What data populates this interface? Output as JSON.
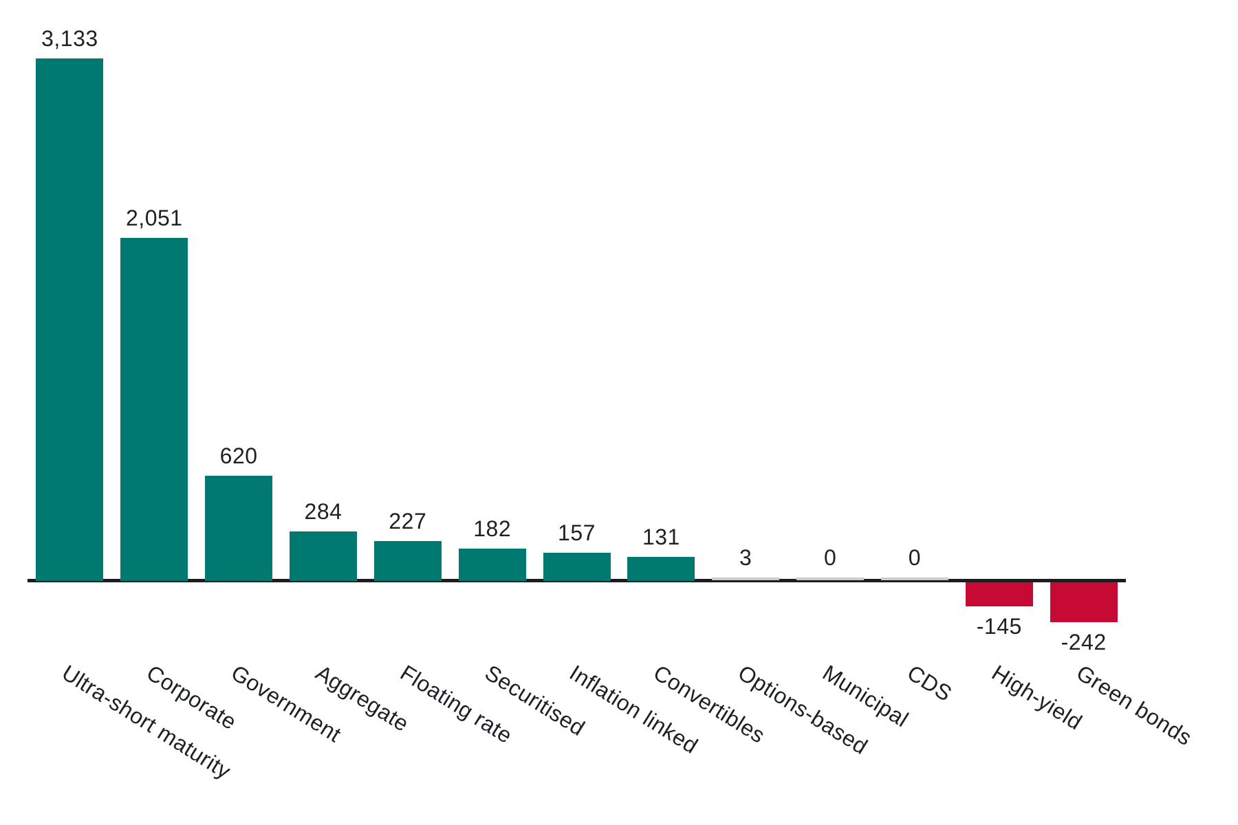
{
  "chart_data": {
    "type": "bar",
    "title": "",
    "xlabel": "",
    "ylabel": "",
    "categories": [
      "Ultra-short maturity",
      "Corporate",
      "Government",
      "Aggregate",
      "Floating rate",
      "Securitised",
      "Inflation linked",
      "Convertibles",
      "Options-based",
      "Municipal",
      "CDS",
      "High-yield",
      "Green bonds"
    ],
    "values": [
      3133,
      2051,
      620,
      284,
      227,
      182,
      157,
      131,
      3,
      0,
      0,
      -145,
      -242
    ],
    "value_labels": [
      "3,133",
      "2,051",
      "620",
      "284",
      "227",
      "182",
      "157",
      "131",
      "3",
      "0",
      "0",
      "-145",
      "-242"
    ],
    "ylim": [
      -242,
      3133
    ],
    "grid": false,
    "legend": false,
    "value_label_position": "outside-end",
    "category_label_rotation_deg": 32,
    "colors": {
      "positive_bar": "#007a70",
      "negative_bar": "#c70a33",
      "zero_sliver": "#c7ccd1",
      "axis": "#1a1c20",
      "text": "#1d2025"
    }
  }
}
